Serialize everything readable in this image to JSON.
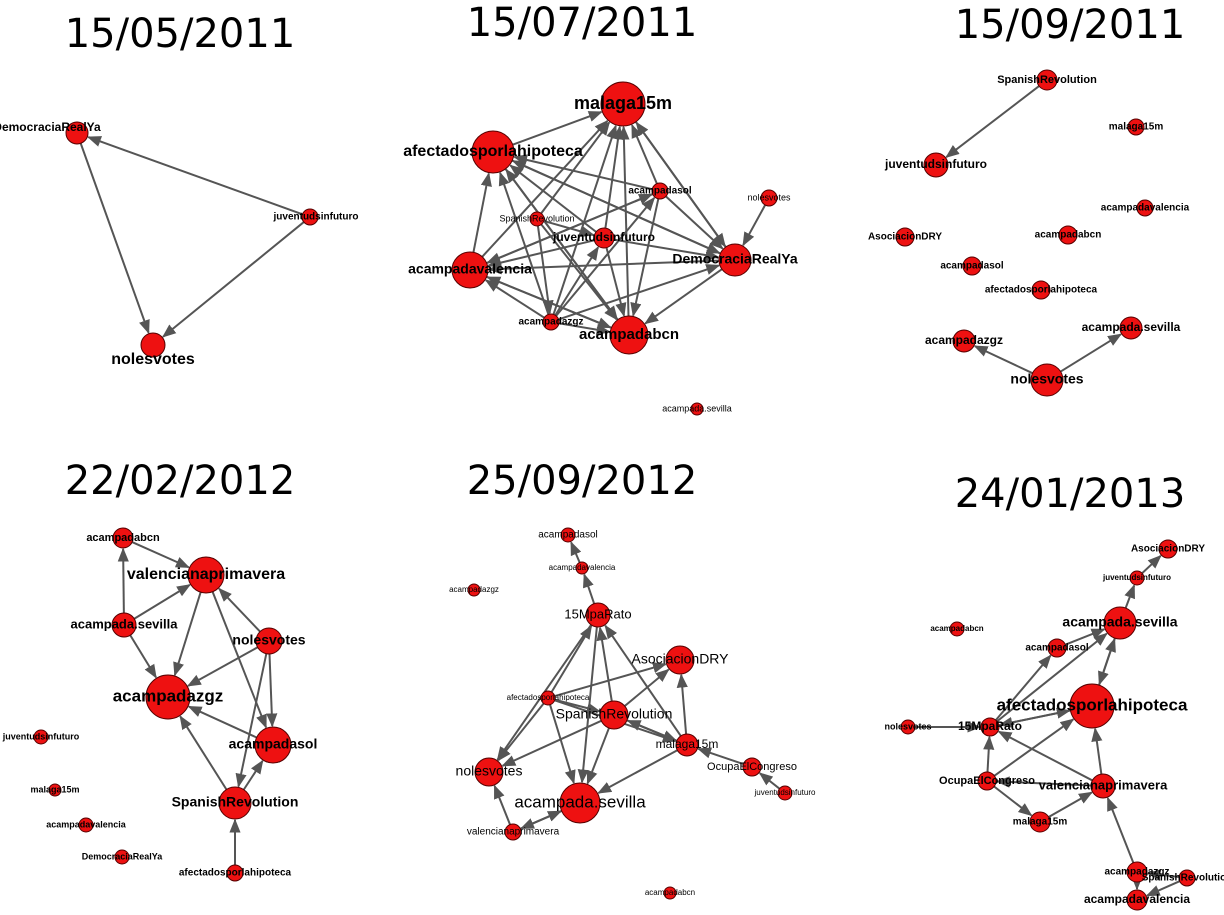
{
  "node_color": "#ee1111",
  "edge_color": "#555555",
  "panels": [
    {
      "title": "15/05/2011",
      "nodes": [
        {
          "id": "DemocraciaRealYa",
          "label": "DemocraciaRealYa"
        },
        {
          "id": "juventudsinfuturo",
          "label": "juventudsinfuturo"
        },
        {
          "id": "nolesvotes",
          "label": "nolesvotes"
        }
      ],
      "edges": [
        [
          "juventudsinfuturo",
          "DemocraciaRealYa"
        ],
        [
          "DemocraciaRealYa",
          "nolesvotes"
        ],
        [
          "juventudsinfuturo",
          "nolesvotes"
        ]
      ]
    },
    {
      "title": "15/07/2011",
      "nodes": [
        {
          "id": "malaga15m",
          "label": "malaga15m"
        },
        {
          "id": "afectadosporlahipoteca",
          "label": "afectadosporlahipoteca"
        },
        {
          "id": "acampadasol",
          "label": "acampadasol"
        },
        {
          "id": "nolesvotes",
          "label": "nolesvotes"
        },
        {
          "id": "SpanishRevolution",
          "label": "SpanishRevolution"
        },
        {
          "id": "juventudsinfuturo",
          "label": "juventudsinfuturo"
        },
        {
          "id": "DemocraciaRealYa",
          "label": "DemocraciaRealYa"
        },
        {
          "id": "acampadavalencia",
          "label": "acampadavalencia"
        },
        {
          "id": "acampadazgz",
          "label": "acampadazgz"
        },
        {
          "id": "acampadabcn",
          "label": "acampadabcn"
        },
        {
          "id": "acampada.sevilla",
          "label": "acampada.sevilla"
        }
      ],
      "edges": [
        [
          "afectadosporlahipoteca",
          "malaga15m"
        ],
        [
          "acampadavalencia",
          "malaga15m"
        ],
        [
          "acampadazgz",
          "malaga15m"
        ],
        [
          "acampadabcn",
          "malaga15m"
        ],
        [
          "juventudsinfuturo",
          "malaga15m"
        ],
        [
          "SpanishRevolution",
          "malaga15m"
        ],
        [
          "acampadasol",
          "malaga15m"
        ],
        [
          "DemocraciaRealYa",
          "malaga15m"
        ],
        [
          "malaga15m",
          "DemocraciaRealYa"
        ],
        [
          "acampadavalencia",
          "afectadosporlahipoteca"
        ],
        [
          "acampadabcn",
          "afectadosporlahipoteca"
        ],
        [
          "acampadazgz",
          "afectadosporlahipoteca"
        ],
        [
          "DemocraciaRealYa",
          "afectadosporlahipoteca"
        ],
        [
          "juventudsinfuturo",
          "afectadosporlahipoteca"
        ],
        [
          "acampadasol",
          "afectadosporlahipoteca"
        ],
        [
          "afectadosporlahipoteca",
          "acampadabcn"
        ],
        [
          "afectadosporlahipoteca",
          "DemocraciaRealYa"
        ],
        [
          "DemocraciaRealYa",
          "acampadavalencia"
        ],
        [
          "acampadabcn",
          "acampadavalencia"
        ],
        [
          "acampadazgz",
          "acampadavalencia"
        ],
        [
          "acampadasol",
          "acampadavalencia"
        ],
        [
          "juventudsinfuturo",
          "acampadavalencia"
        ],
        [
          "acampadavalencia",
          "acampadabcn"
        ],
        [
          "DemocraciaRealYa",
          "acampadabcn"
        ],
        [
          "acampadasol",
          "acampadabcn"
        ],
        [
          "juventudsinfuturo",
          "acampadabcn"
        ],
        [
          "SpanishRevolution",
          "acampadabcn"
        ],
        [
          "acampadazgz",
          "acampadabcn"
        ],
        [
          "nolesvotes",
          "DemocraciaRealYa"
        ],
        [
          "acampadazgz",
          "DemocraciaRealYa"
        ],
        [
          "acampadasol",
          "DemocraciaRealYa"
        ],
        [
          "acampadazgz",
          "acampadasol"
        ],
        [
          "acampadazgz",
          "juventudsinfuturo"
        ],
        [
          "SpanishRevolution",
          "juventudsinfuturo"
        ],
        [
          "acampadavalencia",
          "acampadasol"
        ],
        [
          "SpanishRevolution",
          "acampadazgz"
        ],
        [
          "juventudsinfuturo",
          "DemocraciaRealYa"
        ]
      ]
    },
    {
      "title": "15/09/2011",
      "nodes": [
        {
          "id": "SpanishRevolution",
          "label": "SpanishRevolution"
        },
        {
          "id": "malaga15m",
          "label": "malaga15m"
        },
        {
          "id": "juventudsinfuturo",
          "label": "juventudsinfuturo"
        },
        {
          "id": "acampadavalencia",
          "label": "acampadavalencia"
        },
        {
          "id": "AsociacionDRY",
          "label": "AsociacionDRY"
        },
        {
          "id": "acampadabcn",
          "label": "acampadabcn"
        },
        {
          "id": "acampadasol",
          "label": "acampadasol"
        },
        {
          "id": "afectadosporlahipoteca",
          "label": "afectadosporlahipoteca"
        },
        {
          "id": "acampadazgz",
          "label": "acampadazgz"
        },
        {
          "id": "acampada.sevilla",
          "label": "acampada.sevilla"
        },
        {
          "id": "nolesvotes",
          "label": "nolesvotes"
        }
      ],
      "edges": [
        [
          "SpanishRevolution",
          "juventudsinfuturo"
        ],
        [
          "nolesvotes",
          "acampadazgz"
        ],
        [
          "nolesvotes",
          "acampada.sevilla"
        ]
      ]
    },
    {
      "title": "22/02/2012",
      "nodes": [
        {
          "id": "acampadabcn",
          "label": "acampadabcn"
        },
        {
          "id": "valencianaprimavera",
          "label": "valencianaprimavera"
        },
        {
          "id": "acampada.sevilla",
          "label": "acampada.sevilla"
        },
        {
          "id": "nolesvotes",
          "label": "nolesvotes"
        },
        {
          "id": "acampadazgz",
          "label": "acampadazgz"
        },
        {
          "id": "acampadasol",
          "label": "acampadasol"
        },
        {
          "id": "juventudsinfuturo",
          "label": "juventudsinfuturo"
        },
        {
          "id": "malaga15m",
          "label": "malaga15m"
        },
        {
          "id": "SpanishRevolution",
          "label": "SpanishRevolution"
        },
        {
          "id": "acampadavalencia",
          "label": "acampadavalencia"
        },
        {
          "id": "DemocraciaRealYa",
          "label": "DemocraciaRealYa"
        },
        {
          "id": "afectadosporlahipoteca",
          "label": "afectadosporlahipoteca"
        }
      ],
      "edges": [
        [
          "acampadabcn",
          "valencianaprimavera"
        ],
        [
          "acampada.sevilla",
          "acampadabcn"
        ],
        [
          "acampada.sevilla",
          "valencianaprimavera"
        ],
        [
          "acampada.sevilla",
          "acampadazgz"
        ],
        [
          "valencianaprimavera",
          "acampadazgz"
        ],
        [
          "valencianaprimavera",
          "acampadasol"
        ],
        [
          "nolesvotes",
          "valencianaprimavera"
        ],
        [
          "nolesvotes",
          "acampadazgz"
        ],
        [
          "nolesvotes",
          "acampadasol"
        ],
        [
          "nolesvotes",
          "SpanishRevolution"
        ],
        [
          "acampadasol",
          "acampadazgz"
        ],
        [
          "SpanishRevolution",
          "acampadazgz"
        ],
        [
          "SpanishRevolution",
          "acampadasol"
        ],
        [
          "afectadosporlahipoteca",
          "SpanishRevolution"
        ]
      ]
    },
    {
      "title": "25/09/2012",
      "nodes": [
        {
          "id": "acampadasol",
          "label": "acampadasol"
        },
        {
          "id": "acampadavalencia",
          "label": "acampadavalencia"
        },
        {
          "id": "acampadazgz",
          "label": "acampadazgz"
        },
        {
          "id": "15MpaRato",
          "label": "15MpaRato"
        },
        {
          "id": "AsociacionDRY",
          "label": "AsociacionDRY"
        },
        {
          "id": "afectadosporlahipoteca",
          "label": "afectadosporlahipoteca"
        },
        {
          "id": "SpanishRevolution",
          "label": "SpanishRevolution"
        },
        {
          "id": "malaga15m",
          "label": "malaga15m"
        },
        {
          "id": "OcupaElCongreso",
          "label": "OcupaElCongreso"
        },
        {
          "id": "nolesvotes",
          "label": "nolesvotes"
        },
        {
          "id": "acampada.sevilla",
          "label": "acampada.sevilla"
        },
        {
          "id": "juventudsinfuturo",
          "label": "juventudsinfuturo"
        },
        {
          "id": "valencianaprimavera",
          "label": "valencianaprimavera"
        },
        {
          "id": "acampadabcn",
          "label": "acampadabcn"
        }
      ],
      "edges": [
        [
          "acampadavalencia",
          "acampadasol"
        ],
        [
          "15MpaRato",
          "acampadavalencia"
        ],
        [
          "afectadosporlahipoteca",
          "15MpaRato"
        ],
        [
          "SpanishRevolution",
          "15MpaRato"
        ],
        [
          "malaga15m",
          "15MpaRato"
        ],
        [
          "15MpaRato",
          "acampada.sevilla"
        ],
        [
          "15MpaRato",
          "nolesvotes"
        ],
        [
          "afectadosporlahipoteca",
          "AsociacionDRY"
        ],
        [
          "malaga15m",
          "AsociacionDRY"
        ],
        [
          "SpanishRevolution",
          "AsociacionDRY"
        ],
        [
          "afectadosporlahipoteca",
          "nolesvotes"
        ],
        [
          "afectadosporlahipoteca",
          "acampada.sevilla"
        ],
        [
          "afectadosporlahipoteca",
          "malaga15m"
        ],
        [
          "SpanishRevolution",
          "nolesvotes"
        ],
        [
          "SpanishRevolution",
          "acampada.sevilla"
        ],
        [
          "SpanishRevolution",
          "malaga15m"
        ],
        [
          "malaga15m",
          "SpanishRevolution"
        ],
        [
          "malaga15m",
          "acampada.sevilla"
        ],
        [
          "OcupaElCongreso",
          "malaga15m"
        ],
        [
          "juventudsinfuturo",
          "OcupaElCongreso"
        ],
        [
          "valencianaprimavera",
          "nolesvotes"
        ],
        [
          "valencianaprimavera",
          "acampada.sevilla"
        ],
        [
          "acampada.sevilla",
          "valencianaprimavera"
        ],
        [
          "afectadosporlahipoteca",
          "SpanishRevolution"
        ]
      ]
    },
    {
      "title": "24/01/2013",
      "nodes": [
        {
          "id": "AsociacionDRY",
          "label": "AsociacionDRY"
        },
        {
          "id": "juventudsinfuturo",
          "label": "juventudsinfuturo"
        },
        {
          "id": "acampadabcn",
          "label": "acampadabcn"
        },
        {
          "id": "acampada.sevilla",
          "label": "acampada.sevilla"
        },
        {
          "id": "acampadasol",
          "label": "acampadasol"
        },
        {
          "id": "afectadosporlahipoteca",
          "label": "afectadosporlahipoteca"
        },
        {
          "id": "nolesvotes",
          "label": "nolesvotes"
        },
        {
          "id": "15MpaRato",
          "label": "15MpaRato"
        },
        {
          "id": "OcupaElCongreso",
          "label": "OcupaElCongreso"
        },
        {
          "id": "valencianaprimavera",
          "label": "valencianaprimavera"
        },
        {
          "id": "malaga15m",
          "label": "malaga15m"
        },
        {
          "id": "acampadazgz",
          "label": "acampadazgz"
        },
        {
          "id": "SpanishRevolution",
          "label": "SpanishRevolution"
        },
        {
          "id": "acampadavalencia",
          "label": "acampadavalencia"
        }
      ],
      "edges": [
        [
          "juventudsinfuturo",
          "AsociacionDRY"
        ],
        [
          "acampada.sevilla",
          "juventudsinfuturo"
        ],
        [
          "acampadasol",
          "acampada.sevilla"
        ],
        [
          "afectadosporlahipoteca",
          "acampada.sevilla"
        ],
        [
          "acampada.sevilla",
          "afectadosporlahipoteca"
        ],
        [
          "15MpaRato",
          "acampadasol"
        ],
        [
          "15MpaRato",
          "acampada.sevilla"
        ],
        [
          "nolesvotes",
          "15MpaRato"
        ],
        [
          "afectadosporlahipoteca",
          "15MpaRato"
        ],
        [
          "15MpaRato",
          "afectadosporlahipoteca"
        ],
        [
          "OcupaElCongreso",
          "15MpaRato"
        ],
        [
          "OcupaElCongreso",
          "afectadosporlahipoteca"
        ],
        [
          "valencianaprimavera",
          "afectadosporlahipoteca"
        ],
        [
          "valencianaprimavera",
          "15MpaRato"
        ],
        [
          "valencianaprimavera",
          "OcupaElCongreso"
        ],
        [
          "OcupaElCongreso",
          "malaga15m"
        ],
        [
          "malaga15m",
          "valencianaprimavera"
        ],
        [
          "acampadazgz",
          "valencianaprimavera"
        ],
        [
          "SpanishRevolution",
          "acampadazgz"
        ],
        [
          "acampadazgz",
          "acampadavalencia"
        ],
        [
          "SpanishRevolution",
          "acampadavalencia"
        ]
      ]
    }
  ]
}
